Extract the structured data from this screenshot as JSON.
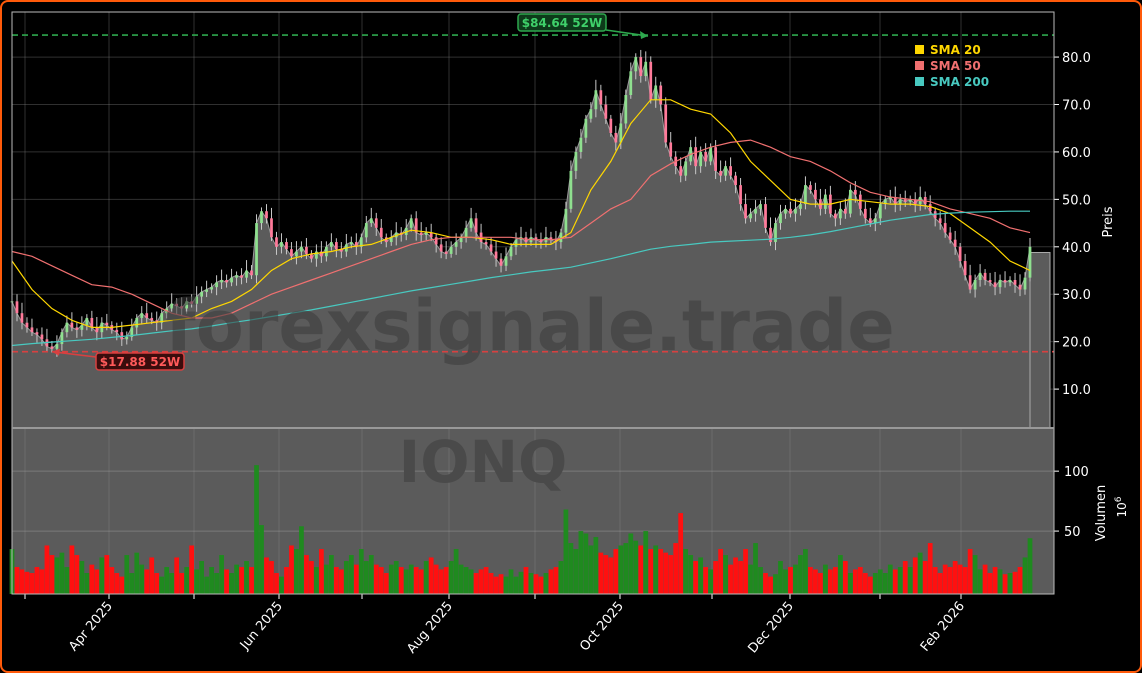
{
  "ticker": "IONQ",
  "watermark": "forexsignale.trade",
  "colors": {
    "background": "#000000",
    "frame": "#ff5a0a",
    "area": "#5b5b5b",
    "candle_up": "#8fe08f",
    "candle_down": "#ff7a9a",
    "volume_up": "#1f8a1f",
    "volume_down": "#ff1010",
    "sma20": "#ffd700",
    "sma50": "#f07070",
    "sma200": "#48c9c0",
    "high_line": "#2ea84e",
    "low_line": "#d84040"
  },
  "chart_data": [
    {
      "type": "candlestick",
      "panel": "price",
      "ylabel": "Preis",
      "ylim": [
        1.8,
        89.5
      ],
      "yticks": [
        "10.0",
        "20.0",
        "30.0",
        "40.0",
        "50.0",
        "60.0",
        "70.0",
        "80.0"
      ],
      "xticks": [
        "Apr 2025",
        "Jun 2025",
        "Aug 2025",
        "Oct 2025",
        "Dec 2025",
        "Feb 2026"
      ],
      "grid": true,
      "legend_position": "top-right",
      "close": [
        28.5,
        26,
        24,
        23,
        22,
        21.5,
        20.5,
        19,
        18.5,
        19.5,
        22,
        24,
        23,
        22.5,
        23.5,
        25,
        23,
        22,
        24,
        23.5,
        22.5,
        22,
        20.5,
        21,
        23,
        25,
        26,
        25,
        24.5,
        24,
        26,
        27,
        28,
        27.5,
        27,
        28.5,
        28,
        29.5,
        30.5,
        31,
        31.5,
        32.5,
        33,
        32.5,
        33.5,
        34,
        33.5,
        35,
        34,
        45,
        47.5,
        46,
        42,
        40,
        41,
        39.5,
        38,
        39,
        40,
        38.5,
        37.5,
        39,
        38,
        40,
        41,
        39.5,
        39,
        40.5,
        41,
        40,
        42,
        45,
        46,
        44,
        42,
        41,
        42,
        43,
        42.5,
        44,
        46,
        43,
        42.5,
        43,
        42,
        40.5,
        39,
        38.5,
        40,
        41,
        42,
        44,
        46,
        43,
        41,
        40.5,
        39,
        37.5,
        36,
        38,
        40,
        41.5,
        42,
        41,
        42,
        41.5,
        41,
        42,
        41.5,
        41,
        43,
        48,
        56,
        60,
        63,
        67,
        69,
        73,
        70,
        67,
        64,
        62,
        66,
        72,
        77,
        80,
        76,
        79,
        71,
        74,
        70,
        62,
        59,
        57,
        55,
        58,
        61,
        57,
        60,
        58,
        61,
        56,
        55,
        57,
        55,
        53,
        49,
        46,
        47,
        48,
        49,
        44,
        41,
        45,
        47,
        48,
        47,
        48,
        49,
        53,
        52,
        50,
        48,
        51,
        47,
        46,
        48,
        47,
        52,
        51,
        48,
        46,
        45,
        46,
        49,
        50,
        50.5,
        49,
        50,
        49.5,
        50,
        49,
        50.5,
        49,
        47.5,
        46,
        45,
        43,
        41.5,
        40,
        37,
        34,
        31,
        33,
        34.5,
        33,
        32.5,
        31.5,
        33,
        32.5,
        33,
        32,
        31,
        33.5,
        40
      ],
      "current_price": 38.8,
      "series": [
        {
          "name": "SMA 20",
          "values": [
            37,
            31,
            27,
            24.5,
            23,
            23,
            23.5,
            24,
            24.5,
            25,
            27,
            28.5,
            31,
            35,
            37.5,
            38.5,
            39,
            40,
            40.5,
            42,
            43.5,
            43,
            42,
            42,
            41.5,
            40.5,
            40.5,
            40.5,
            43,
            52,
            58,
            66,
            71,
            71,
            69,
            68,
            64,
            58,
            54,
            50,
            49,
            49,
            50,
            49.5,
            49,
            49,
            48.5,
            47,
            44,
            41,
            37,
            35
          ]
        },
        {
          "name": "SMA 50",
          "values": [
            39,
            38,
            36,
            34,
            32,
            31.5,
            30,
            28,
            26,
            25,
            25,
            26,
            28,
            30,
            31.5,
            33,
            34.5,
            36,
            37.5,
            39,
            40.5,
            41.5,
            42,
            42,
            42,
            42,
            41.5,
            41.5,
            42,
            45,
            48,
            50,
            55,
            57.5,
            59.5,
            61,
            62,
            62.5,
            61,
            59,
            58,
            56,
            53.5,
            51.5,
            50.5,
            50,
            49.5,
            48,
            47,
            46,
            44,
            43
          ]
        },
        {
          "name": "SMA 200",
          "values": [
            19.2,
            19.6,
            19.9,
            20.2,
            20.5,
            20.9,
            21.3,
            21.8,
            22.3,
            22.7,
            23.3,
            24,
            24.6,
            25.3,
            26,
            26.7,
            27.5,
            28.3,
            29.1,
            29.9,
            30.7,
            31.4,
            32.1,
            32.8,
            33.5,
            34.1,
            34.7,
            35.2,
            35.7,
            36.6,
            37.5,
            38.5,
            39.5,
            40.1,
            40.5,
            41,
            41.2,
            41.4,
            41.6,
            42,
            42.5,
            43.2,
            44,
            44.8,
            45.6,
            46.2,
            46.8,
            47.1,
            47.3,
            47.4,
            47.5,
            47.5
          ]
        }
      ],
      "annotations": [
        {
          "label": "$84.64 52W",
          "value": 84.64,
          "kind": "high"
        },
        {
          "label": "$17.88 52W",
          "value": 17.88,
          "kind": "low"
        }
      ]
    },
    {
      "type": "bar",
      "panel": "volume",
      "ylabel": "Volumen",
      "unit_label": "10",
      "unit_exponent": "6",
      "ylim": [
        -2.5,
        136
      ],
      "yticks": [
        "50",
        "100"
      ],
      "values": [
        35,
        20,
        18,
        16,
        15,
        20,
        18,
        38,
        30,
        28,
        32,
        20,
        38,
        30,
        25,
        15,
        22,
        18,
        28,
        30,
        20,
        15,
        12,
        30,
        15,
        32,
        22,
        18,
        28,
        15,
        12,
        20,
        15,
        28,
        15,
        20,
        38,
        18,
        25,
        12,
        20,
        15,
        30,
        18,
        15,
        22,
        20,
        25,
        20,
        105,
        55,
        28,
        25,
        15,
        12,
        20,
        38,
        35,
        54,
        30,
        25,
        20,
        35,
        22,
        30,
        20,
        18,
        25,
        30,
        22,
        35,
        25,
        30,
        22,
        20,
        15,
        22,
        25,
        20,
        18,
        22,
        20,
        18,
        25,
        28,
        22,
        18,
        20,
        25,
        35,
        22,
        20,
        18,
        15,
        18,
        20,
        15,
        12,
        14,
        12,
        18,
        12,
        16,
        20,
        15,
        14,
        12,
        15,
        18,
        20,
        25,
        68,
        40,
        35,
        50,
        48,
        38,
        45,
        32,
        30,
        28,
        35,
        38,
        40,
        48,
        42,
        38,
        50,
        35,
        38,
        35,
        32,
        30,
        40,
        65,
        35,
        30,
        25,
        28,
        20,
        18,
        25,
        35,
        30,
        22,
        28,
        25,
        35,
        22,
        40,
        20,
        15,
        12,
        14,
        25,
        18,
        20,
        22,
        30,
        35,
        20,
        18,
        15,
        22,
        18,
        20,
        30,
        25,
        15,
        18,
        20,
        15,
        12,
        15,
        18,
        15,
        22,
        18,
        20,
        25,
        20,
        28,
        32,
        25,
        40,
        20,
        15,
        22,
        20,
        25,
        22,
        20,
        35,
        30,
        18,
        22,
        15,
        20,
        18,
        14,
        15,
        16,
        20,
        28,
        44
      ]
    }
  ]
}
